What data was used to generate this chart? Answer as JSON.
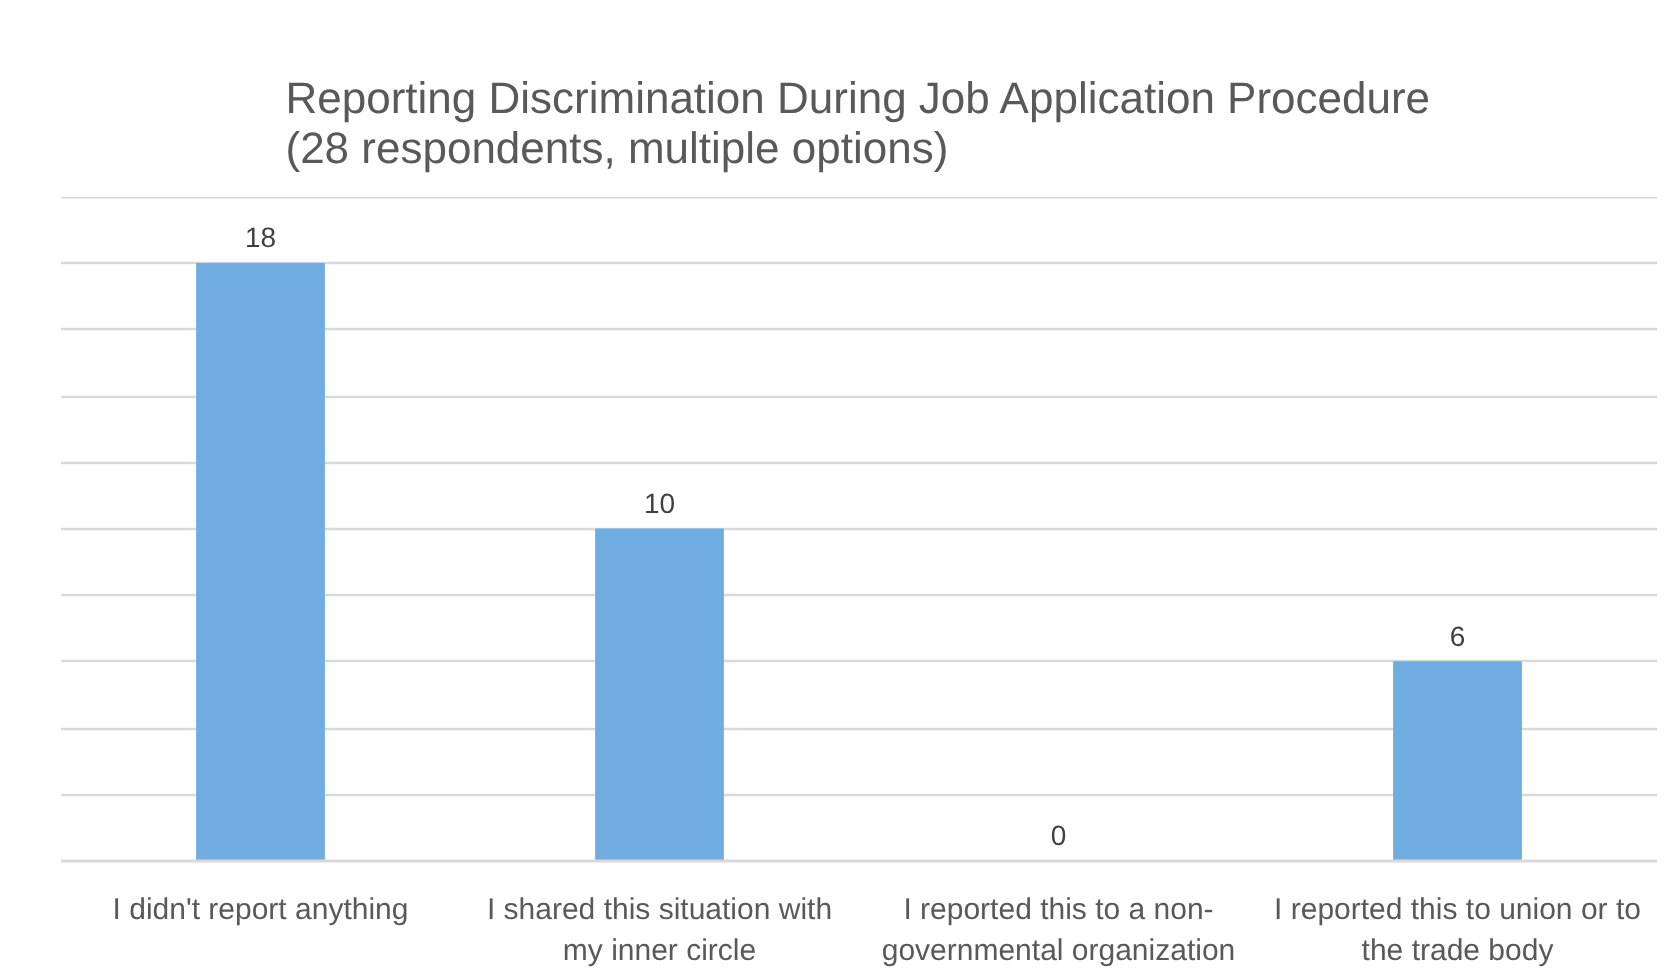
{
  "chart_data": {
    "type": "bar",
    "title": "Reporting Discrimination During Job Application Procedure (28 respondents, multiple options)",
    "categories": [
      "I didn't report anything",
      "I shared this situation with my inner circle",
      "I reported this to a non-governmental organization",
      "I reported this to union or to the trade body"
    ],
    "values": [
      18,
      10,
      0,
      6
    ],
    "color": "#6fade0",
    "ylim": [
      0,
      20
    ],
    "yticks": [
      {
        "value": 0,
        "label": null
      },
      {
        "value": 2,
        "label": null
      },
      {
        "value": 4,
        "label": null
      },
      {
        "value": 6,
        "label": null
      },
      {
        "value": 8,
        "label": null
      },
      {
        "value": 10,
        "label": null
      },
      {
        "value": 12,
        "label": null
      },
      {
        "value": 14,
        "label": null
      },
      {
        "value": 16,
        "label": null
      },
      {
        "value": 18,
        "label": null
      },
      {
        "value": 20,
        "label": null
      }
    ],
    "tick_labels": "x",
    "grid": "y",
    "data_labels": true
  }
}
